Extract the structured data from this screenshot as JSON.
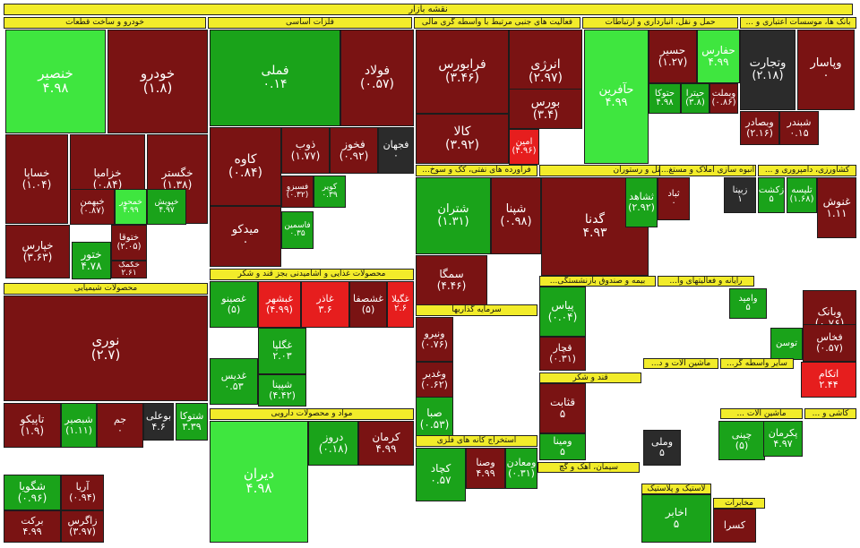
{
  "title": "نقشه بازار",
  "groups": [
    {
      "id": "khodro",
      "label": "خودرو و ساخت قطعات"
    },
    {
      "id": "felezat",
      "label": "فلزات اساسی"
    },
    {
      "id": "mali",
      "label": "فعالیت های جنبی مرتبط با واسطه گری مالی"
    },
    {
      "id": "ertebatat",
      "label": "حمل و نقل، انبارداری و ارتباطات"
    },
    {
      "id": "bank",
      "label": "بانک ها، موسسات اعتباری و ..."
    },
    {
      "id": "naft",
      "label": "فراورده های نفتی، کک و سوخ..."
    },
    {
      "id": "hotel",
      "label": "هتل و رستوران"
    },
    {
      "id": "amlak",
      "label": "انبوه سازی املاک و مستغ..."
    },
    {
      "id": "keshavarzi",
      "label": "کشاورزی، دامپروری و ..."
    },
    {
      "id": "ghaza",
      "label": "محصولات غذایی و آشامیدنی بجز قند و شکر"
    },
    {
      "id": "shimiaei",
      "label": "محصولات شیمیایی"
    },
    {
      "id": "sarmaye",
      "label": "سرمایه گذاریها"
    },
    {
      "id": "rayaneh",
      "label": "رایانه و فعالیتهای وا..."
    },
    {
      "id": "bime",
      "label": "بیمه و صندوق بازنشستگی..."
    },
    {
      "id": "ghand",
      "label": "قند و شکر"
    },
    {
      "id": "darouei",
      "label": "مواد و محصولات دارویی"
    },
    {
      "id": "estekhraj",
      "label": "استخراج کانه های فلزی"
    },
    {
      "id": "siman",
      "label": "سیمان، آهک و گچ"
    },
    {
      "id": "plastic",
      "label": "لاستیک و پلاستیک"
    },
    {
      "id": "makhaberat",
      "label": "مخابرات"
    },
    {
      "id": "mashin",
      "label": "ماشین آلات و د..."
    },
    {
      "id": "sayer",
      "label": "سایر واسطه گر..."
    },
    {
      "id": "barghi",
      "label": "ماشین آلات ..."
    },
    {
      "id": "kashi",
      "label": "کاشی و ..."
    }
  ],
  "tiles": [
    {
      "name": "خنصیر",
      "pct": "۴.۹۸"
    },
    {
      "name": "خودرو",
      "pct": "(۱.۸)"
    },
    {
      "name": "خساپا",
      "pct": "(۱.۰۴)"
    },
    {
      "name": "خزامیا",
      "pct": "(۰.۸۴)"
    },
    {
      "name": "خگستر",
      "pct": "(۱.۳۸)"
    },
    {
      "name": "خپارس",
      "pct": "(۳.۶۳)"
    },
    {
      "name": "خبهمن",
      "pct": "(۰.۸۷)"
    },
    {
      "name": "خمحور",
      "pct": "۴.۹۹"
    },
    {
      "name": "خپویش",
      "pct": "۴.۹۷"
    },
    {
      "name": "ختور",
      "pct": "۴.۷۸"
    },
    {
      "name": "ختوقا",
      "pct": "(۲.۰۵)"
    },
    {
      "name": "خکمک",
      "pct": "۲.۶۱"
    },
    {
      "name": "فملی",
      "pct": "۰.۱۴"
    },
    {
      "name": "فولاد",
      "pct": "(۰.۵۷)"
    },
    {
      "name": "کاوه",
      "pct": "(۰.۸۴)"
    },
    {
      "name": "ذوب",
      "pct": "(۱.۷۷)"
    },
    {
      "name": "فخوز",
      "pct": "(۰.۹۲)"
    },
    {
      "name": "فجهان",
      "pct": "۰"
    },
    {
      "name": "میدکو",
      "pct": "۰"
    },
    {
      "name": "فسبزو",
      "pct": "(۰.۳۲)"
    },
    {
      "name": "کویر",
      "pct": "۰.۳۹"
    },
    {
      "name": "فاسمین",
      "pct": "۰.۳۵"
    },
    {
      "name": "فرابورس",
      "pct": "(۳.۴۶)"
    },
    {
      "name": "انرژی",
      "pct": "(۲.۹۷)"
    },
    {
      "name": "بورس",
      "pct": "(۳.۴)"
    },
    {
      "name": "کالا",
      "pct": "(۳.۹۲)"
    },
    {
      "name": "امین",
      "pct": "(۴.۹۶)"
    },
    {
      "name": "حآفرین",
      "pct": "۴.۹۹"
    },
    {
      "name": "حسیر",
      "pct": "(۱.۲۷)"
    },
    {
      "name": "حفارس",
      "pct": "۴.۹۹"
    },
    {
      "name": "حتوکا",
      "pct": "۴.۹۸"
    },
    {
      "name": "حیترا",
      "pct": "(۳.۸)"
    },
    {
      "name": "وبملت",
      "pct": "(۰.۸۶)"
    },
    {
      "name": "وپاسار",
      "pct": "۰"
    },
    {
      "name": "وتجارت",
      "pct": "(۲.۱۸)"
    },
    {
      "name": "وبصادر",
      "pct": "(۲.۱۶)"
    },
    {
      "name": "شبندر",
      "pct": "۰.۱۵"
    },
    {
      "name": "شتران",
      "pct": "(۱.۳۱)"
    },
    {
      "name": "شپنا",
      "pct": "(۰.۹۸)"
    },
    {
      "name": "سمگا",
      "pct": "(۴.۴۶)"
    },
    {
      "name": "گدنا",
      "pct": "۴.۹۳"
    },
    {
      "name": "ثشاهد",
      "pct": "(۲.۹۲)"
    },
    {
      "name": "ثباد",
      "pct": "۰"
    },
    {
      "name": "زبینا",
      "pct": "۱"
    },
    {
      "name": "زکشت",
      "pct": "۵"
    },
    {
      "name": "تلیسه",
      "pct": "(۱.۶۸)"
    },
    {
      "name": "غنوش",
      "pct": "۱.۱۱"
    },
    {
      "name": "غصینو",
      "pct": "(۵)"
    },
    {
      "name": "غبشهر",
      "pct": "(۴.۹۹)"
    },
    {
      "name": "غاذر",
      "pct": "۳.۶"
    },
    {
      "name": "غشصفا",
      "pct": "(۵)"
    },
    {
      "name": "غگیلا",
      "pct": "۲.۶"
    },
    {
      "name": "غگلپا",
      "pct": "۲.۰۳"
    },
    {
      "name": "غدیس",
      "pct": "۰.۵۳"
    },
    {
      "name": "شپینا",
      "pct": "(۴.۴۲)"
    },
    {
      "name": "نوری",
      "pct": "(۲.۷)"
    },
    {
      "name": "تاپیکو",
      "pct": "(۱.۹)"
    },
    {
      "name": "شبصیر",
      "pct": "(۱.۱۱)"
    },
    {
      "name": "جم",
      "pct": "۰"
    },
    {
      "name": "بوعلی",
      "pct": "۴.۶"
    },
    {
      "name": "شتوکا",
      "pct": "۳.۳۹"
    },
    {
      "name": "شگویا",
      "pct": "(۰.۹۶)"
    },
    {
      "name": "آریا",
      "pct": "(۰.۹۴)"
    },
    {
      "name": "زاگرس",
      "pct": "(۳.۹۷)"
    },
    {
      "name": "برکت",
      "pct": "۴.۹۹"
    },
    {
      "name": "دیران",
      "pct": "۴.۹۸"
    },
    {
      "name": "دروز",
      "pct": "(۰.۱۸)"
    },
    {
      "name": "کرمان",
      "pct": "۴.۹۹"
    },
    {
      "name": "کچاد",
      "pct": "۰.۵۷"
    },
    {
      "name": "ومعادن",
      "pct": "(۰.۳۱)"
    },
    {
      "name": "وصنا",
      "pct": "۴.۹۹"
    },
    {
      "name": "صبا",
      "pct": "(۰.۵۳)"
    },
    {
      "name": "ونیرو",
      "pct": "(۰.۷۶)"
    },
    {
      "name": "وغدیر",
      "pct": "(۰.۶۲)"
    },
    {
      "name": "وبانک",
      "pct": "(۰.۷۶)"
    },
    {
      "name": "فخاس",
      "pct": "(۰.۵۷)"
    },
    {
      "name": "اتکام",
      "pct": "۲.۴۴"
    },
    {
      "name": "پیاس",
      "pct": "(۰.۰۴)"
    },
    {
      "name": "قچار",
      "pct": "(۰.۳۱)"
    },
    {
      "name": "قثابت",
      "pct": "۵"
    },
    {
      "name": "ومینا",
      "pct": "۵"
    },
    {
      "name": "چینی",
      "pct": "(۵)"
    },
    {
      "name": "وملی",
      "pct": "۵"
    },
    {
      "name": "پکرمان",
      "pct": "۴.۹۷"
    },
    {
      "name": "اخابر",
      "pct": "۵"
    },
    {
      "name": "کسرا",
      "pct": ""
    },
    {
      "name": "وامید",
      "pct": "۵"
    },
    {
      "name": "توسن",
      "pct": ""
    }
  ]
}
